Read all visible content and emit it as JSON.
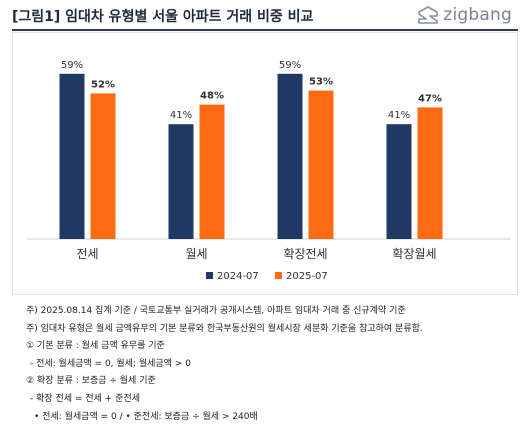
{
  "header": {
    "title": "[그림1] 임대차 유형별 서울 아파트 거래 비중 비교",
    "logo_text": "zigbang",
    "logo_icon": "zigbang-logo-icon"
  },
  "colors": {
    "series_2024": "#1f3864",
    "series_2025": "#ff6a13",
    "title_rule": "#2e3b52"
  },
  "chart_data": {
    "type": "bar",
    "categories": [
      "전세",
      "월세",
      "확장전세",
      "확장월세"
    ],
    "series": [
      {
        "name": "2024-07",
        "values": [
          59,
          41,
          59,
          41
        ],
        "labels": [
          "59%",
          "41%",
          "59%",
          "41%"
        ],
        "color": "#1f3864"
      },
      {
        "name": "2025-07",
        "values": [
          52,
          48,
          53,
          47
        ],
        "labels": [
          "52%",
          "48%",
          "53%",
          "47%"
        ],
        "color": "#ff6a13"
      }
    ],
    "ylim": [
      0,
      70
    ],
    "grid": false,
    "legend": "bottom-center",
    "title": "",
    "xlabel": "",
    "ylabel": ""
  },
  "notes": [
    "주) 2025.08.14 집계 기준 / 국토교통부 실거래가 공개시스템, 아파트 임대차 거래 중 신규계약 기준",
    "주) 임대차 유형은 월세 금액유무의 기본 분류와 한국부동산원의 월세시장 세분화 기준을 참고하여 분류함.",
    "① 기본 분류 : 월세 금액 유무를 기준",
    " - 전세: 월세금액 = 0, 월세: 월세금액 > 0",
    "② 확장 분류 : 보증금 ÷ 월세 기준",
    " - 확장 전세 = 전세 + 준전세",
    "  • 전세: 월세금액 = 0 / • 준전세: 보증금 ÷ 월세 > 240배"
  ]
}
